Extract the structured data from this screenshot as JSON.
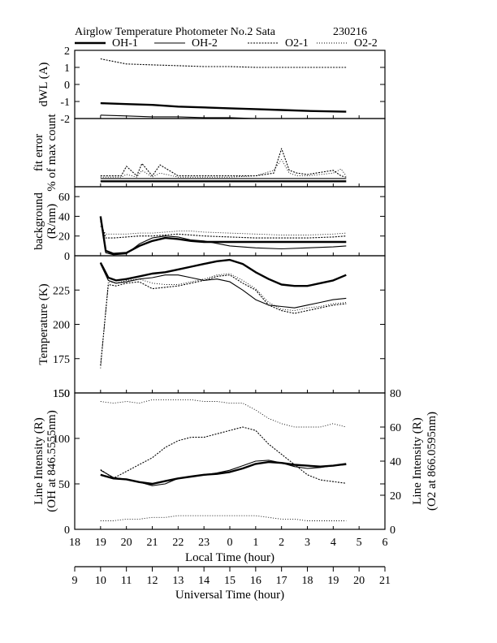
{
  "header": {
    "title": "Airglow Temperature Photometer No.2  Sata",
    "date_code": "230216"
  },
  "legend": [
    {
      "label": "OH-1",
      "style": "solid-thick"
    },
    {
      "label": "OH-2",
      "style": "solid-thin"
    },
    {
      "label": "O2-1",
      "style": "dotted-dense"
    },
    {
      "label": "O2-2",
      "style": "dotted-sparse"
    }
  ],
  "axes": {
    "local_time_label": "Local Time (hour)",
    "local_time_ticks": [
      "18",
      "19",
      "20",
      "21",
      "22",
      "23",
      "0",
      "1",
      "2",
      "3",
      "4",
      "5",
      "6"
    ],
    "universal_time_label": "Universal Time (hour)",
    "universal_time_ticks": [
      "9",
      "10",
      "11",
      "12",
      "13",
      "14",
      "15",
      "16",
      "17",
      "18",
      "19",
      "20",
      "21"
    ]
  },
  "chart_data": [
    {
      "type": "line",
      "panel": "dwl",
      "ylabel": "dWL (A)",
      "ylim": [
        -2,
        2
      ],
      "yticks": [
        "-2",
        "-1",
        "0",
        "1",
        "2"
      ],
      "x": [
        19.0,
        20.0,
        21.0,
        22.0,
        23.0,
        24.0,
        25.0,
        26.0,
        27.0,
        28.5
      ],
      "series": [
        {
          "name": "OH-1",
          "values": [
            -1.1,
            -1.15,
            -1.2,
            -1.3,
            -1.35,
            -1.4,
            -1.45,
            -1.5,
            -1.55,
            -1.6
          ]
        },
        {
          "name": "OH-2",
          "values": [
            -1.8,
            -1.85,
            -1.9,
            -1.9,
            -1.95,
            -1.95,
            -2.0,
            -2.0,
            -2.0,
            -2.0
          ]
        },
        {
          "name": "O2-1",
          "values": [
            1.5,
            1.2,
            1.15,
            1.1,
            1.05,
            1.05,
            1.0,
            1.0,
            1.0,
            1.0
          ]
        },
        {
          "name": "O2-2",
          "values": [
            2.0,
            2.0,
            2.0,
            2.0,
            2.0,
            2.0,
            2.0,
            2.0,
            2.0,
            2.0
          ]
        }
      ]
    },
    {
      "type": "line",
      "panel": "fit-error",
      "ylabel": "fit error",
      "ylabel2": "% of max count",
      "ylim": [
        0,
        5
      ],
      "yticks": [],
      "x": [
        19.0,
        19.8,
        20.0,
        20.4,
        20.6,
        21.0,
        21.3,
        22.0,
        23.0,
        24.0,
        25.0,
        25.7,
        26.0,
        26.3,
        26.6,
        27.0,
        28.0,
        28.3,
        28.5
      ],
      "series": [
        {
          "name": "OH-1",
          "values": [
            0.4,
            0.4,
            0.4,
            0.4,
            0.4,
            0.4,
            0.4,
            0.4,
            0.4,
            0.4,
            0.4,
            0.4,
            0.4,
            0.4,
            0.4,
            0.4,
            0.4,
            0.4,
            0.4
          ]
        },
        {
          "name": "OH-2",
          "values": [
            0.6,
            0.6,
            0.6,
            0.6,
            0.6,
            0.6,
            0.6,
            0.6,
            0.6,
            0.6,
            0.6,
            0.6,
            0.6,
            0.6,
            0.6,
            0.6,
            0.6,
            0.6,
            0.6
          ]
        },
        {
          "name": "O2-1",
          "values": [
            0.8,
            0.8,
            1.5,
            0.8,
            1.7,
            0.8,
            1.6,
            0.8,
            0.8,
            0.8,
            0.8,
            1.0,
            2.8,
            1.2,
            1.0,
            0.9,
            1.2,
            0.8,
            0.7
          ]
        },
        {
          "name": "O2-2",
          "values": [
            0.7,
            0.7,
            0.9,
            0.7,
            1.2,
            0.7,
            1.0,
            0.7,
            0.7,
            0.7,
            0.8,
            1.2,
            2.0,
            1.0,
            0.8,
            0.8,
            1.0,
            1.3,
            0.8
          ]
        }
      ]
    },
    {
      "type": "line",
      "panel": "background",
      "ylabel": "background",
      "ylabel2": "(R/nm)",
      "ylim": [
        0,
        70
      ],
      "yticks": [
        "0",
        "20",
        "40",
        "60"
      ],
      "x": [
        19.0,
        19.2,
        19.5,
        20.0,
        20.5,
        21.0,
        21.5,
        22.0,
        22.5,
        23.0,
        24.0,
        25.0,
        26.0,
        27.0,
        28.0,
        28.5
      ],
      "series": [
        {
          "name": "OH-1",
          "values": [
            40,
            5,
            2,
            3,
            10,
            15,
            18,
            17,
            15,
            14,
            14,
            14,
            14,
            14,
            14,
            14
          ]
        },
        {
          "name": "OH-2",
          "values": [
            38,
            3,
            1,
            2,
            12,
            18,
            20,
            19,
            16,
            15,
            10,
            8,
            7,
            8,
            9,
            10
          ]
        },
        {
          "name": "O2-1",
          "values": [
            35,
            18,
            18,
            19,
            20,
            20,
            21,
            22,
            21,
            20,
            19,
            18,
            18,
            18,
            19,
            20
          ]
        },
        {
          "name": "O2-2",
          "values": [
            30,
            22,
            22,
            22,
            23,
            23,
            24,
            25,
            25,
            24,
            23,
            22,
            21,
            21,
            22,
            23
          ]
        }
      ]
    },
    {
      "type": "line",
      "panel": "temperature",
      "ylabel": "Temperature (K)",
      "ylim": [
        150,
        250
      ],
      "yticks": [
        "150",
        "175",
        "200",
        "225"
      ],
      "x": [
        19.0,
        19.3,
        19.6,
        20.0,
        20.5,
        21.0,
        21.5,
        22.0,
        22.5,
        23.0,
        23.5,
        24.0,
        24.5,
        25.0,
        25.5,
        26.0,
        26.5,
        27.0,
        27.5,
        28.0,
        28.5
      ],
      "series": [
        {
          "name": "OH-1",
          "values": [
            245,
            234,
            232,
            233,
            235,
            237,
            238,
            240,
            242,
            244,
            246,
            247,
            244,
            238,
            233,
            229,
            228,
            228,
            230,
            232,
            236
          ]
        },
        {
          "name": "OH-2",
          "values": [
            244,
            232,
            230,
            231,
            233,
            234,
            236,
            236,
            234,
            232,
            233,
            231,
            225,
            218,
            214,
            213,
            212,
            214,
            216,
            218,
            219
          ]
        },
        {
          "name": "O2-1",
          "values": [
            170,
            229,
            228,
            230,
            231,
            226,
            227,
            228,
            230,
            232,
            235,
            236,
            230,
            225,
            214,
            210,
            208,
            210,
            212,
            214,
            215
          ]
        },
        {
          "name": "O2-2",
          "values": [
            168,
            231,
            230,
            232,
            233,
            230,
            229,
            229,
            231,
            233,
            236,
            237,
            232,
            226,
            216,
            211,
            210,
            212,
            213,
            215,
            216
          ]
        }
      ]
    },
    {
      "type": "line",
      "panel": "line-intensity",
      "ylabel": "Line Intensity (R)",
      "ylabel2": "(OH at 846.5555nm)",
      "ylim": [
        0,
        150
      ],
      "yticks": [
        "0",
        "50",
        "100",
        "150"
      ],
      "y2label": "Line Intensity (R)",
      "y2label2": "(O2 at 866.0595nm)",
      "y2lim": [
        0,
        80
      ],
      "y2ticks": [
        "0",
        "20",
        "40",
        "60",
        "80"
      ],
      "x": [
        19.0,
        19.5,
        20.0,
        20.5,
        21.0,
        21.5,
        22.0,
        22.5,
        23.0,
        23.5,
        24.0,
        24.5,
        25.0,
        25.5,
        26.0,
        26.5,
        27.0,
        27.5,
        28.0,
        28.5
      ],
      "series": [
        {
          "name": "OH-1",
          "values": [
            60,
            56,
            55,
            52,
            50,
            53,
            56,
            58,
            60,
            61,
            63,
            67,
            72,
            74,
            73,
            71,
            70,
            69,
            70,
            72
          ]
        },
        {
          "name": "OH-2",
          "values": [
            65,
            57,
            55,
            52,
            48,
            50,
            56,
            58,
            60,
            62,
            65,
            70,
            75,
            76,
            73,
            69,
            67,
            68,
            70,
            71
          ]
        },
        {
          "name": "O2-1",
          "axis": "right",
          "values": [
            35,
            30,
            34,
            38,
            42,
            48,
            52,
            54,
            54,
            56,
            58,
            60,
            58,
            50,
            44,
            38,
            32,
            29,
            28,
            27
          ]
        },
        {
          "name": "O2-2",
          "axis": "right",
          "values": [
            75,
            74,
            75,
            74,
            76,
            76,
            76,
            76,
            75,
            75,
            74,
            74,
            70,
            65,
            62,
            60,
            60,
            60,
            62,
            60
          ]
        },
        {
          "name": "O2-2 (low)",
          "axis": "right",
          "values": [
            5,
            5,
            6,
            6,
            7,
            7,
            8,
            8,
            8,
            8,
            8,
            8,
            8,
            7,
            6,
            6,
            5,
            5,
            5,
            5
          ]
        }
      ]
    }
  ]
}
